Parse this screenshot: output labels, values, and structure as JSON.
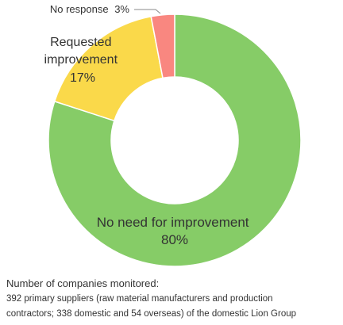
{
  "chart_data": {
    "type": "pie",
    "variant": "donut",
    "slices": [
      {
        "label": "No need for improvement",
        "value": 80,
        "value_label": "80%",
        "color": "#86CC67"
      },
      {
        "label": "Requested improvement",
        "value": 17,
        "value_label": "17%",
        "color": "#FAD94A"
      },
      {
        "label": "No response",
        "value": 3,
        "value_label": "3%",
        "color": "#F98780"
      }
    ],
    "title": "",
    "legend": "none",
    "data_labels": "on-chart"
  },
  "notes": {
    "title": "Number of companies monitored:",
    "line1": "392 primary suppliers (raw material manufacturers and production",
    "line2": "contractors; 338 domestic and 54 overseas) of the domestic Lion Group"
  }
}
